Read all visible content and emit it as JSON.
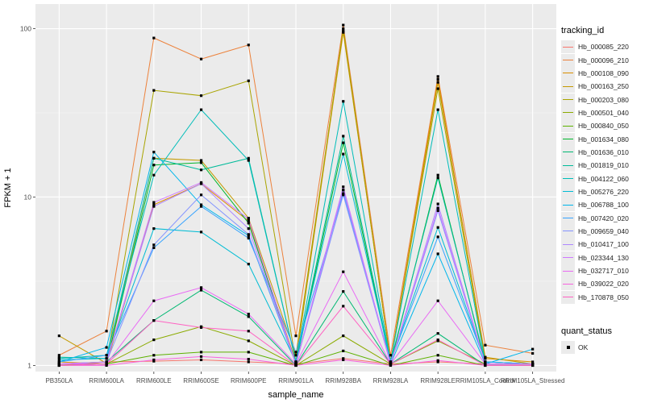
{
  "chart_data": {
    "type": "line",
    "xlabel": "sample_name",
    "ylabel": "FPKM + 1",
    "yscale": "log10",
    "ylim": [
      0.92,
      140
    ],
    "yticks": [
      1,
      10,
      100
    ],
    "ytick_labels": [
      "1",
      "10",
      "100"
    ],
    "grid": true,
    "legend_position": "right",
    "categories": [
      "PB350LA",
      "RRIM600LA",
      "RRIM600LE",
      "RRIM600SE",
      "RRIM600PE",
      "RRIM901LA",
      "RRIM928BA",
      "RRIM928LA",
      "RRIM928LE",
      "RRIM105LA_Control",
      "RRIM105LA_Stressed"
    ],
    "legend_title": "tracking_id",
    "series": [
      {
        "name": "Hb_000085_220",
        "color": "#F8766D",
        "values": [
          1.02,
          1.05,
          1.06,
          1.08,
          1.05,
          1.02,
          1.1,
          1.02,
          1.05,
          1.02,
          1.02
        ]
      },
      {
        "name": "Hb_000096_210",
        "color": "#EC823C",
        "values": [
          1.15,
          1.6,
          88,
          66,
          80,
          1.5,
          105,
          1.15,
          52,
          1.32,
          1.18
        ]
      },
      {
        "name": "Hb_000108_090",
        "color": "#DA8E00",
        "values": [
          1.05,
          1.02,
          9.0,
          12.0,
          7.2,
          1.05,
          95,
          1.05,
          50,
          1.1,
          1.05
        ]
      },
      {
        "name": "Hb_000163_250",
        "color": "#C49A00",
        "values": [
          1.5,
          1.03,
          17.0,
          16.5,
          7.5,
          1.15,
          97,
          1.05,
          48,
          1.12,
          1.02
        ]
      },
      {
        "name": "Hb_000203_080",
        "color": "#A9A400",
        "values": [
          1.0,
          1.05,
          43,
          40,
          49,
          1.05,
          100,
          1.05,
          44,
          1.05,
          1.02
        ]
      },
      {
        "name": "Hb_000501_040",
        "color": "#8BAB00",
        "values": [
          1.02,
          1.02,
          1.42,
          1.7,
          1.4,
          1.0,
          1.5,
          1.02,
          1.4,
          1.02,
          1.02
        ]
      },
      {
        "name": "Hb_000840_050",
        "color": "#5DB100",
        "values": [
          1.0,
          1.02,
          1.15,
          1.2,
          1.2,
          1.0,
          1.22,
          1.0,
          1.15,
          1.0,
          1.0
        ]
      },
      {
        "name": "Hb_001634_080",
        "color": "#00B52C",
        "values": [
          1.0,
          1.02,
          15.5,
          16.0,
          7.0,
          1.02,
          21.0,
          1.02,
          13.5,
          1.02,
          1.02
        ]
      },
      {
        "name": "Hb_001636_010",
        "color": "#00B872",
        "values": [
          1.02,
          1.05,
          1.85,
          2.8,
          1.95,
          1.0,
          2.75,
          1.02,
          1.55,
          1.0,
          1.0
        ]
      },
      {
        "name": "Hb_001819_010",
        "color": "#00BB9A",
        "values": [
          1.12,
          1.1,
          17.0,
          14.5,
          17.0,
          1.05,
          23.0,
          1.05,
          13.0,
          1.05,
          1.02
        ]
      },
      {
        "name": "Hb_004122_060",
        "color": "#00BDB9",
        "values": [
          1.1,
          1.15,
          13.5,
          33,
          16.5,
          1.05,
          37,
          1.05,
          33,
          1.05,
          1.02
        ]
      },
      {
        "name": "Hb_005276_220",
        "color": "#00BCD4",
        "values": [
          1.08,
          1.1,
          6.5,
          6.2,
          4.0,
          1.05,
          18.0,
          1.05,
          6.6,
          1.05,
          1.02
        ]
      },
      {
        "name": "Hb_006788_100",
        "color": "#00B6EB",
        "values": [
          1.05,
          1.28,
          18.5,
          9.0,
          5.9,
          1.02,
          11.0,
          1.02,
          4.6,
          1.02,
          1.25
        ]
      },
      {
        "name": "Hb_007420_020",
        "color": "#35A3FF",
        "values": [
          1.05,
          1.15,
          5.0,
          8.8,
          5.7,
          1.2,
          10.5,
          1.05,
          5.8,
          1.05,
          1.02
        ]
      },
      {
        "name": "Hb_009659_040",
        "color": "#8494FF",
        "values": [
          1.02,
          1.05,
          5.2,
          10.3,
          6.0,
          1.02,
          10.3,
          1.02,
          8.3,
          1.02,
          1.02
        ]
      },
      {
        "name": "Hb_010417_100",
        "color": "#AE87FF",
        "values": [
          1.02,
          1.05,
          8.8,
          12.0,
          6.5,
          1.02,
          11.0,
          1.02,
          9.1,
          1.02,
          1.02
        ]
      },
      {
        "name": "Hb_023344_130",
        "color": "#CF78FF",
        "values": [
          1.02,
          1.05,
          9.3,
          12.2,
          7.4,
          1.02,
          11.5,
          1.02,
          8.6,
          1.02,
          1.02
        ]
      },
      {
        "name": "Hb_032717_010",
        "color": "#E96BF4",
        "values": [
          1.02,
          1.02,
          2.42,
          2.9,
          2.02,
          1.02,
          3.6,
          1.02,
          2.42,
          1.02,
          1.02
        ]
      },
      {
        "name": "Hb_039022_020",
        "color": "#F863DE",
        "values": [
          1.0,
          1.0,
          1.08,
          1.13,
          1.09,
          1.0,
          1.08,
          1.0,
          1.07,
          1.0,
          1.0
        ]
      },
      {
        "name": "Hb_170878_050",
        "color": "#FF61C2",
        "values": [
          1.0,
          1.02,
          1.85,
          1.68,
          1.6,
          1.0,
          2.25,
          1.02,
          1.42,
          1.0,
          1.0
        ]
      }
    ],
    "shape_legend": {
      "title": "quant_status",
      "entries": [
        "OK"
      ]
    }
  }
}
